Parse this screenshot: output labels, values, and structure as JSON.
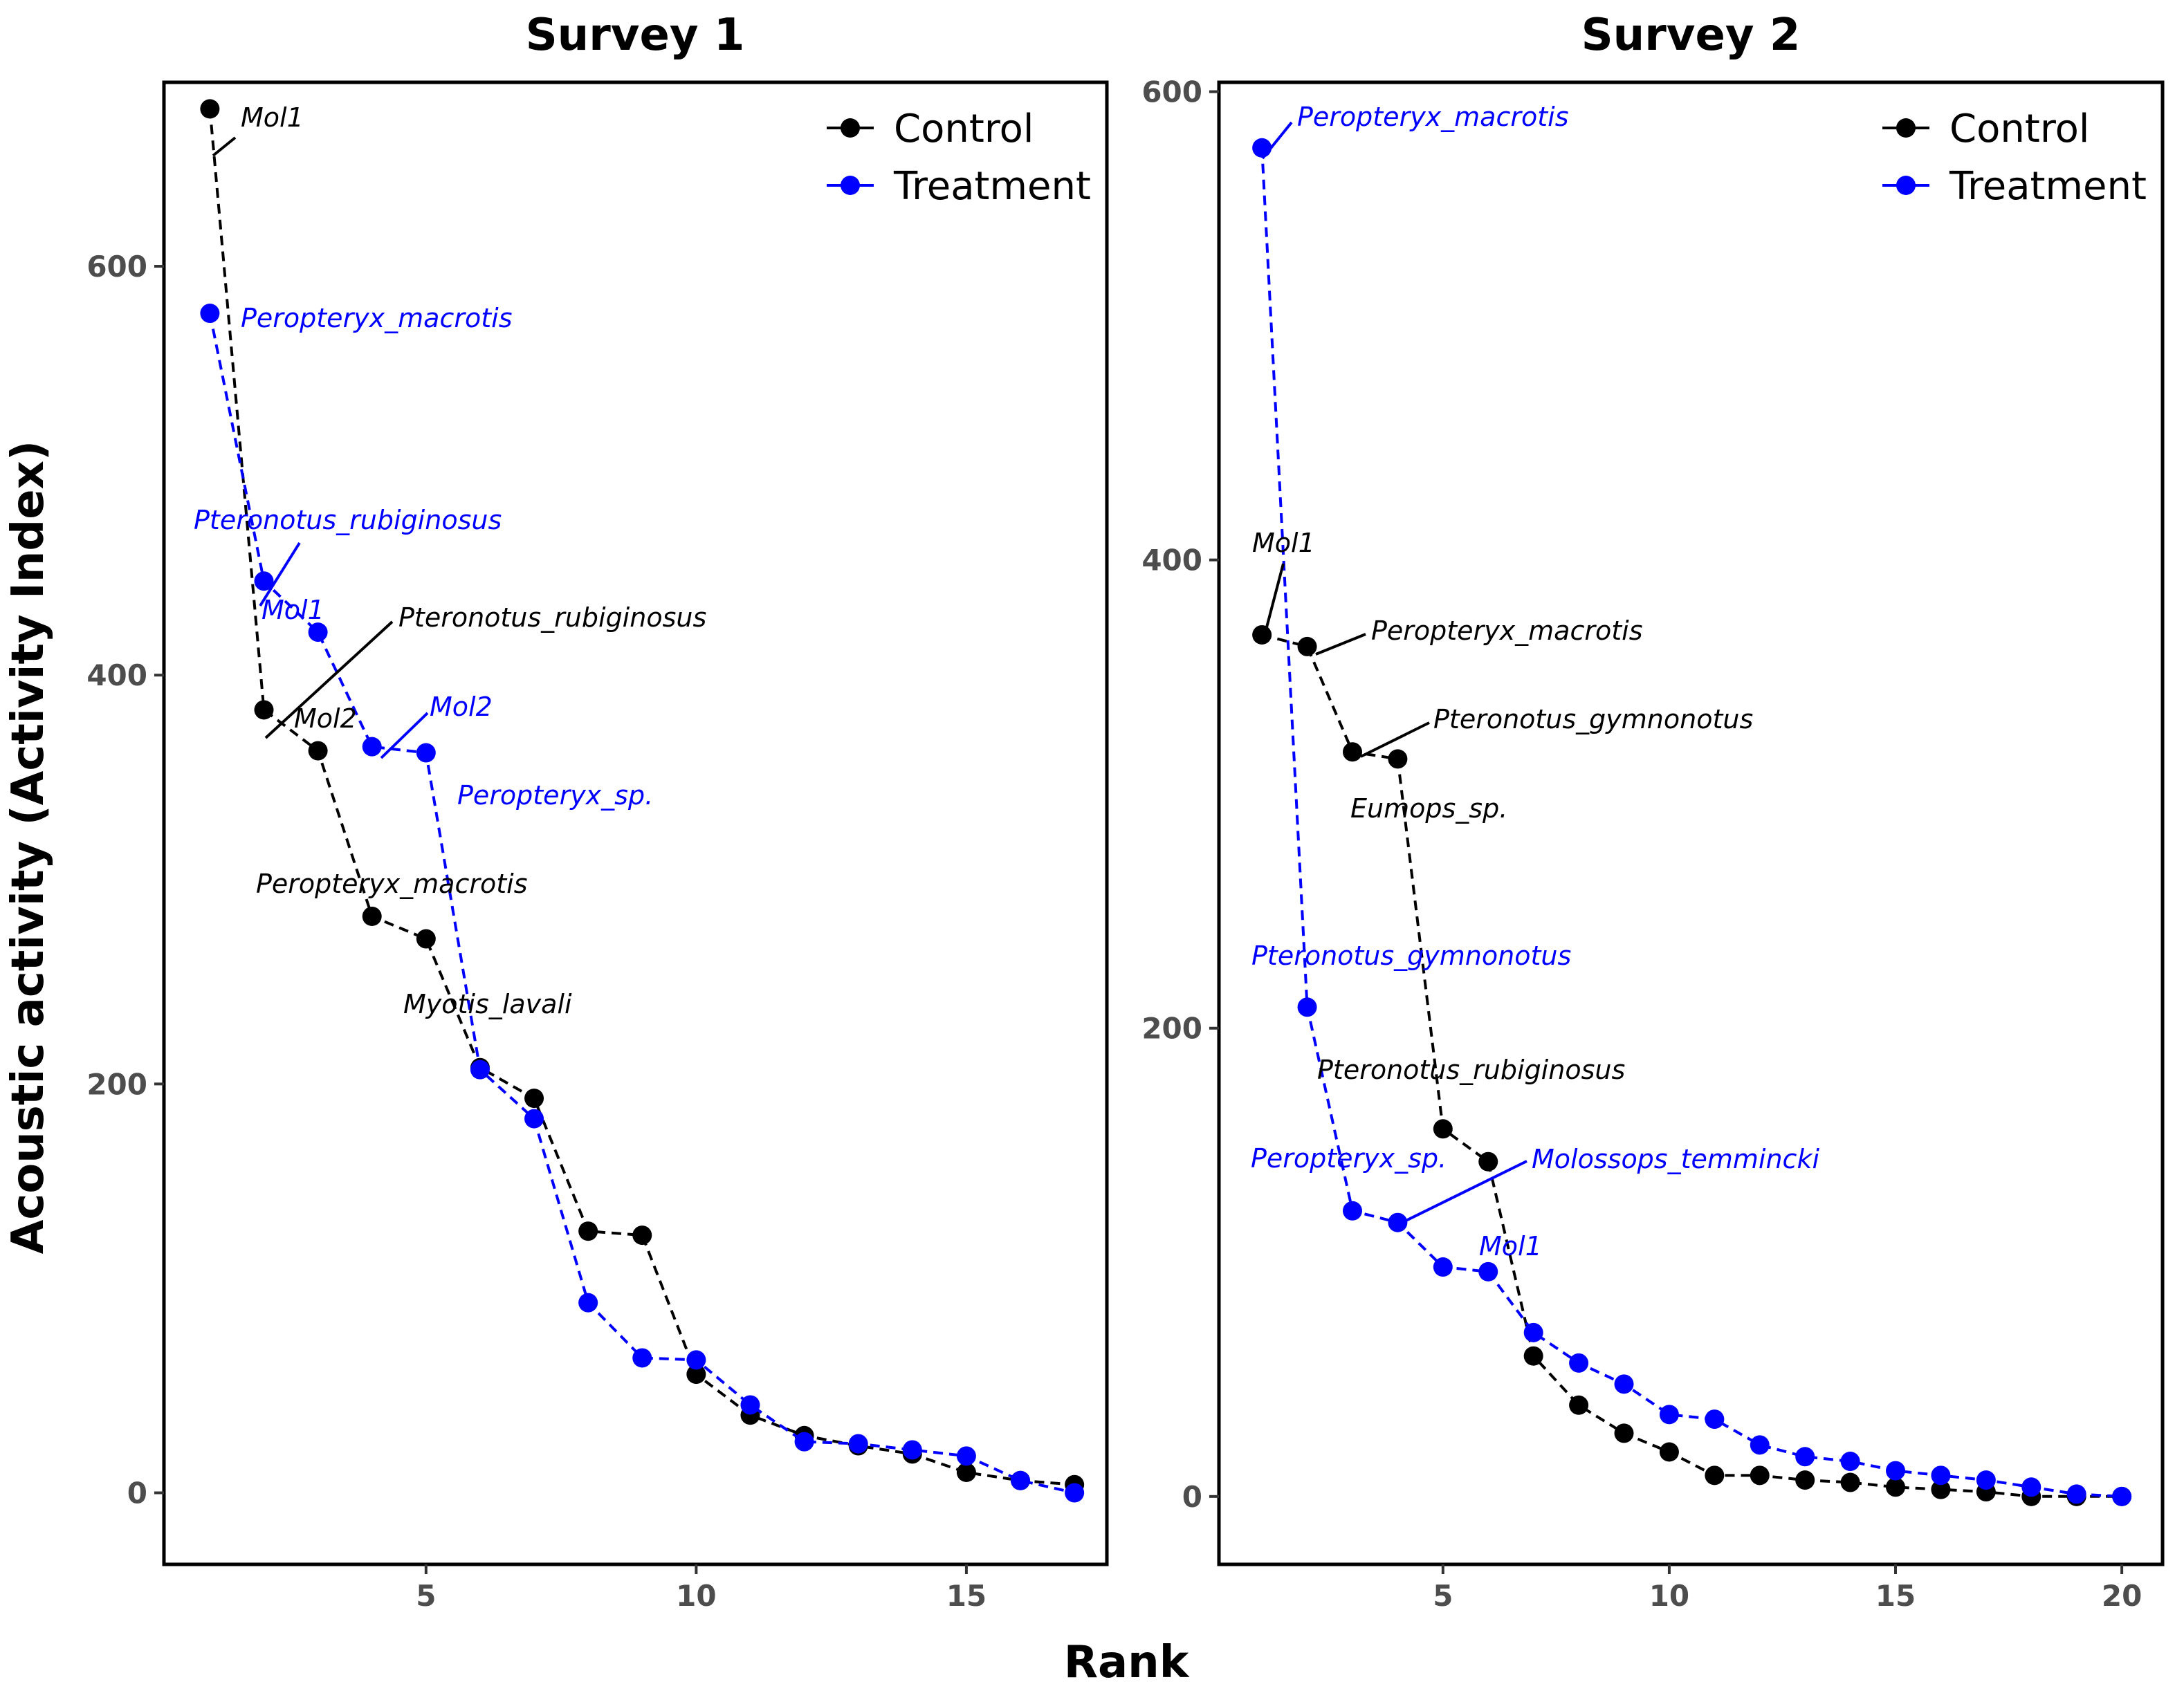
{
  "figure": {
    "ylabel": "Acoustic activity (Activity Index)",
    "xlabel": "Rank"
  },
  "colors": {
    "Control": "#000000",
    "Treatment": "#0000ff"
  },
  "chart_data": [
    {
      "type": "line",
      "title": "Survey 1",
      "xlabel": "Rank",
      "ylabel": "Acoustic activity (Activity Index)",
      "xlim": [
        0.15,
        17.6
      ],
      "ylim": [
        -35,
        690
      ],
      "xticks": [
        5,
        10,
        15
      ],
      "yticks": [
        0,
        200,
        400,
        600
      ],
      "grid": false,
      "legend": "top-right",
      "series": [
        {
          "name": "Control",
          "x": [
            1,
            2,
            3,
            4,
            5,
            6,
            7,
            8,
            9,
            10,
            11,
            12,
            13,
            14,
            15,
            16,
            17
          ],
          "values": [
            677,
            383,
            363,
            282,
            271,
            208,
            193,
            128,
            126,
            58,
            38,
            28,
            23,
            19,
            10,
            6,
            4
          ]
        },
        {
          "name": "Treatment",
          "x": [
            1,
            2,
            3,
            4,
            5,
            6,
            7,
            8,
            9,
            10,
            11,
            12,
            13,
            14,
            15,
            16,
            17
          ],
          "values": [
            577,
            446,
            421,
            365,
            362,
            207,
            183,
            93,
            66,
            65,
            43,
            25,
            24,
            21,
            18,
            6,
            0
          ]
        }
      ],
      "annotations": [
        {
          "text": "Mol1",
          "series": "Control"
        },
        {
          "text": "Pteronotus_rubiginosus",
          "series": "Control"
        },
        {
          "text": "Mol2",
          "series": "Control"
        },
        {
          "text": "Peropteryx_macrotis",
          "series": "Control"
        },
        {
          "text": "Myotis_lavali",
          "series": "Control"
        },
        {
          "text": "Peropteryx_macrotis",
          "series": "Treatment"
        },
        {
          "text": "Pteronotus_rubiginosus",
          "series": "Treatment"
        },
        {
          "text": "Mol1",
          "series": "Treatment"
        },
        {
          "text": "Mol2",
          "series": "Treatment"
        },
        {
          "text": "Peropteryx_sp.",
          "series": "Treatment"
        }
      ]
    },
    {
      "type": "line",
      "title": "Survey 2",
      "xlabel": "Rank",
      "ylabel": "Acoustic activity (Activity Index)",
      "xlim": [
        0.05,
        20.9
      ],
      "ylim": [
        -29,
        604
      ],
      "xticks": [
        5,
        10,
        15,
        20
      ],
      "yticks": [
        0,
        200,
        400,
        600
      ],
      "grid": false,
      "legend": "top-right",
      "series": [
        {
          "name": "Control",
          "x": [
            1,
            2,
            3,
            4,
            5,
            6,
            7,
            8,
            9,
            10,
            11,
            12,
            13,
            14,
            15,
            16,
            17,
            18,
            19,
            20
          ],
          "values": [
            368,
            363,
            318,
            315,
            157,
            143,
            60,
            39,
            27,
            19,
            9,
            9,
            7,
            6,
            4,
            3,
            2,
            0,
            0,
            0
          ]
        },
        {
          "name": "Treatment",
          "x": [
            1,
            2,
            3,
            4,
            5,
            6,
            7,
            8,
            9,
            10,
            11,
            12,
            13,
            14,
            15,
            16,
            17,
            18,
            19,
            20
          ],
          "values": [
            576,
            209,
            122,
            117,
            98,
            96,
            70,
            57,
            48,
            35,
            33,
            22,
            17,
            15,
            11,
            9,
            7,
            4,
            1,
            0
          ]
        }
      ],
      "annotations": [
        {
          "text": "Mol1",
          "series": "Control"
        },
        {
          "text": "Peropteryx_macrotis",
          "series": "Control"
        },
        {
          "text": "Pteronotus_gymnonotus",
          "series": "Control"
        },
        {
          "text": "Eumops_sp.",
          "series": "Control"
        },
        {
          "text": "Pteronotus_rubiginosus",
          "series": "Control"
        },
        {
          "text": "Peropteryx_macrotis",
          "series": "Treatment"
        },
        {
          "text": "Pteronotus_gymnonotus",
          "series": "Treatment"
        },
        {
          "text": "Peropteryx_sp.",
          "series": "Treatment"
        },
        {
          "text": "Molossops_temmincki",
          "series": "Treatment"
        },
        {
          "text": "Mol1",
          "series": "Treatment"
        }
      ]
    }
  ]
}
